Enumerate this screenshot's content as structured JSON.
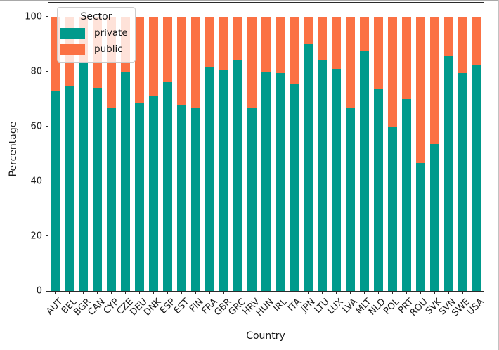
{
  "chart_data": {
    "type": "bar",
    "stacked": true,
    "title": "",
    "xlabel": "Country",
    "ylabel": "Percentage",
    "ylim": [
      0,
      105
    ],
    "yticks": [
      0,
      20,
      40,
      60,
      80,
      100
    ],
    "grid": false,
    "legend": {
      "title": "Sector",
      "position": "upper-left"
    },
    "categories": [
      "AUT",
      "BEL",
      "BGR",
      "CAN",
      "CYP",
      "CZE",
      "DEU",
      "DNK",
      "ESP",
      "EST",
      "FIN",
      "FRA",
      "GBR",
      "GRC",
      "HRV",
      "HUN",
      "IRL",
      "ITA",
      "JPN",
      "LTU",
      "LUX",
      "LVA",
      "MLT",
      "NLD",
      "POL",
      "PRT",
      "ROU",
      "SVK",
      "SVN",
      "SWE",
      "USA"
    ],
    "series": [
      {
        "name": "private",
        "color": "#009a8c",
        "values": [
          73,
          74.5,
          83,
          74,
          66.5,
          80,
          68.5,
          71,
          76,
          67.5,
          66.5,
          81.5,
          80.5,
          84,
          66.5,
          80,
          79.5,
          75.5,
          90,
          84,
          81,
          66.5,
          87.5,
          73.5,
          60,
          70,
          46.5,
          53.5,
          85.5,
          79.5,
          82.5
        ]
      },
      {
        "name": "public",
        "color": "#fb7144",
        "values": [
          27,
          25.5,
          17,
          26,
          33.5,
          20,
          31.5,
          29,
          24,
          32.5,
          33.5,
          18.5,
          19.5,
          16,
          33.5,
          20,
          20.5,
          24.5,
          10,
          16,
          19,
          33.5,
          12.5,
          26.5,
          40,
          30,
          53.5,
          46.5,
          14.5,
          20.5,
          17.5
        ]
      }
    ]
  },
  "colors": {
    "spine": "#2b2b2b",
    "text": "#1a1a1a",
    "legend_border": "#cccccc"
  }
}
